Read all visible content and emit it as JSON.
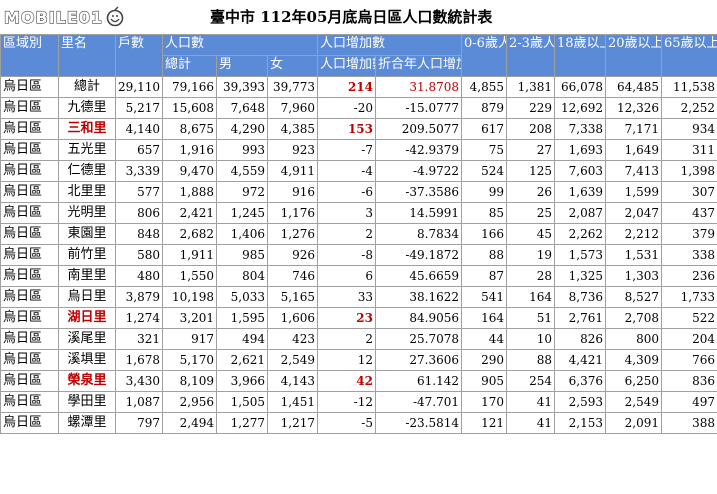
{
  "logo": {
    "text": "MOBILE01",
    "icon": "mobile01-logo-icon"
  },
  "title": "臺中市 112年05月底烏日區人口數統計表",
  "headers": {
    "region": "區域別",
    "village": "里名",
    "households": "戶數",
    "population": "人口數",
    "total": "總計",
    "male": "男",
    "female": "女",
    "increase_group": "人口增加數",
    "increase": "人口增加數",
    "annual_rate": "折合年人口增加率(‰)",
    "age_0_6": "0-6歲人口數",
    "age_2_3": "2-3歲人口數",
    "age_18": "18歲以上人口數",
    "age_20": "20歲以上人口數",
    "age_65": "65歲以上人口數"
  },
  "rows": [
    {
      "region": "烏日區",
      "village": "總計",
      "households": "29,110",
      "total": "79,166",
      "male": "39,393",
      "female": "39,773",
      "increase": "214",
      "rate": "31.8708",
      "a06": "4,855",
      "a23": "1,381",
      "a18": "66,078",
      "a20": "64,485",
      "a65": "11,538",
      "highlight_inc": true,
      "rate_red": true,
      "highlight_village": false
    },
    {
      "region": "烏日區",
      "village": "九德里",
      "households": "5,217",
      "total": "15,608",
      "male": "7,648",
      "female": "7,960",
      "increase": "-20",
      "rate": "-15.0777",
      "a06": "879",
      "a23": "229",
      "a18": "12,692",
      "a20": "12,326",
      "a65": "2,252"
    },
    {
      "region": "烏日區",
      "village": "三和里",
      "households": "4,140",
      "total": "8,675",
      "male": "4,290",
      "female": "4,385",
      "increase": "153",
      "rate": "209.5077",
      "a06": "617",
      "a23": "208",
      "a18": "7,338",
      "a20": "7,171",
      "a65": "934",
      "highlight_inc": true,
      "highlight_village": true
    },
    {
      "region": "烏日區",
      "village": "五光里",
      "households": "657",
      "total": "1,916",
      "male": "993",
      "female": "923",
      "increase": "-7",
      "rate": "-42.9379",
      "a06": "75",
      "a23": "27",
      "a18": "1,693",
      "a20": "1,649",
      "a65": "311"
    },
    {
      "region": "烏日區",
      "village": "仁德里",
      "households": "3,339",
      "total": "9,470",
      "male": "4,559",
      "female": "4,911",
      "increase": "-4",
      "rate": "-4.9722",
      "a06": "524",
      "a23": "125",
      "a18": "7,603",
      "a20": "7,413",
      "a65": "1,398"
    },
    {
      "region": "烏日區",
      "village": "北里里",
      "households": "577",
      "total": "1,888",
      "male": "972",
      "female": "916",
      "increase": "-6",
      "rate": "-37.3586",
      "a06": "99",
      "a23": "26",
      "a18": "1,639",
      "a20": "1,599",
      "a65": "307"
    },
    {
      "region": "烏日區",
      "village": "光明里",
      "households": "806",
      "total": "2,421",
      "male": "1,245",
      "female": "1,176",
      "increase": "3",
      "rate": "14.5991",
      "a06": "85",
      "a23": "25",
      "a18": "2,087",
      "a20": "2,047",
      "a65": "437"
    },
    {
      "region": "烏日區",
      "village": "東園里",
      "households": "848",
      "total": "2,682",
      "male": "1,406",
      "female": "1,276",
      "increase": "2",
      "rate": "8.7834",
      "a06": "166",
      "a23": "45",
      "a18": "2,262",
      "a20": "2,212",
      "a65": "379"
    },
    {
      "region": "烏日區",
      "village": "前竹里",
      "households": "580",
      "total": "1,911",
      "male": "985",
      "female": "926",
      "increase": "-8",
      "rate": "-49.1872",
      "a06": "88",
      "a23": "19",
      "a18": "1,573",
      "a20": "1,531",
      "a65": "338"
    },
    {
      "region": "烏日區",
      "village": "南里里",
      "households": "480",
      "total": "1,550",
      "male": "804",
      "female": "746",
      "increase": "6",
      "rate": "45.6659",
      "a06": "87",
      "a23": "28",
      "a18": "1,325",
      "a20": "1,303",
      "a65": "236"
    },
    {
      "region": "烏日區",
      "village": "烏日里",
      "households": "3,879",
      "total": "10,198",
      "male": "5,033",
      "female": "5,165",
      "increase": "33",
      "rate": "38.1622",
      "a06": "541",
      "a23": "164",
      "a18": "8,736",
      "a20": "8,527",
      "a65": "1,733"
    },
    {
      "region": "烏日區",
      "village": "湖日里",
      "households": "1,274",
      "total": "3,201",
      "male": "1,595",
      "female": "1,606",
      "increase": "23",
      "rate": "84.9056",
      "a06": "164",
      "a23": "51",
      "a18": "2,761",
      "a20": "2,708",
      "a65": "522",
      "highlight_inc": true,
      "highlight_village": true
    },
    {
      "region": "烏日區",
      "village": "溪尾里",
      "households": "321",
      "total": "917",
      "male": "494",
      "female": "423",
      "increase": "2",
      "rate": "25.7078",
      "a06": "44",
      "a23": "10",
      "a18": "826",
      "a20": "800",
      "a65": "204"
    },
    {
      "region": "烏日區",
      "village": "溪埧里",
      "households": "1,678",
      "total": "5,170",
      "male": "2,621",
      "female": "2,549",
      "increase": "12",
      "rate": "27.3606",
      "a06": "290",
      "a23": "88",
      "a18": "4,421",
      "a20": "4,309",
      "a65": "766"
    },
    {
      "region": "烏日區",
      "village": "榮泉里",
      "households": "3,430",
      "total": "8,109",
      "male": "3,966",
      "female": "4,143",
      "increase": "42",
      "rate": "61.142",
      "a06": "905",
      "a23": "254",
      "a18": "6,376",
      "a20": "6,250",
      "a65": "836",
      "highlight_inc": true,
      "highlight_village": true
    },
    {
      "region": "烏日區",
      "village": "學田里",
      "households": "1,087",
      "total": "2,956",
      "male": "1,505",
      "female": "1,451",
      "increase": "-12",
      "rate": "-47.701",
      "a06": "170",
      "a23": "41",
      "a18": "2,593",
      "a20": "2,549",
      "a65": "497"
    },
    {
      "region": "烏日區",
      "village": "螺潭里",
      "households": "797",
      "total": "2,494",
      "male": "1,277",
      "female": "1,217",
      "increase": "-5",
      "rate": "-23.5814",
      "a06": "121",
      "a23": "41",
      "a18": "2,153",
      "a20": "2,091",
      "a65": "388"
    }
  ],
  "colors": {
    "header_bg": "#5b8ad6",
    "highlight": "#c00000",
    "grid": "#a0a0a0"
  }
}
